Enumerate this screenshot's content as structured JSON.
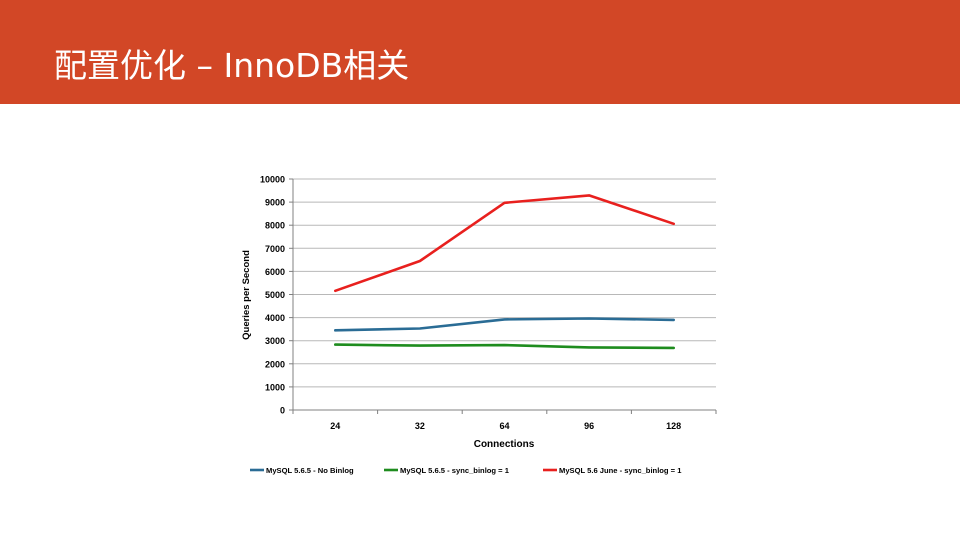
{
  "slide": {
    "title": "配置优化 – InnoDB相关"
  },
  "colors": {
    "header_bg": "#D24726",
    "header_text": "#FFFFFF",
    "grid": "#B8B8B8",
    "axis": "#808080",
    "text": "#000000"
  },
  "chart_data": {
    "type": "line",
    "categories": [
      "24",
      "32",
      "64",
      "96",
      "128"
    ],
    "series": [
      {
        "name": "MySQL 5.6.5 - No Binlog",
        "color": "#2A6C95",
        "values": [
          3450,
          3530,
          3920,
          3960,
          3900
        ]
      },
      {
        "name": "MySQL 5.6.5 - sync_binlog = 1",
        "color": "#1E8C1E",
        "values": [
          2830,
          2790,
          2810,
          2710,
          2690
        ]
      },
      {
        "name": "MySQL 5.6 June - sync_binlog = 1",
        "color": "#E8201E",
        "values": [
          5160,
          6450,
          8970,
          9290,
          8060
        ]
      }
    ],
    "title": "",
    "xlabel": "Connections",
    "ylabel": "Queries per Second",
    "ylim": [
      0,
      10000
    ],
    "yticks": [
      0,
      1000,
      2000,
      3000,
      4000,
      5000,
      6000,
      7000,
      8000,
      9000,
      10000
    ],
    "grid": true,
    "legend": "bottom"
  }
}
